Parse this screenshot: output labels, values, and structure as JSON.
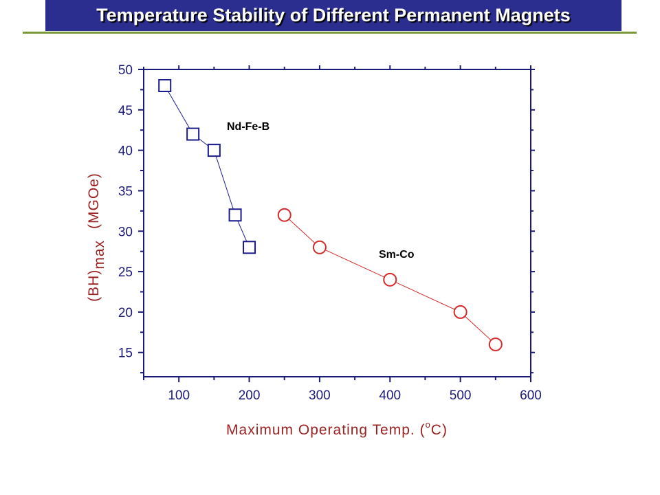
{
  "header": {
    "title": "Temperature Stability of Different Permanent Magnets",
    "title_bg": "#2b2e8f",
    "rule_color": "#7a9a3a"
  },
  "chart_data": {
    "type": "scatter",
    "title": "Temperature Stability of Different Permanent Magnets",
    "xlabel_main": "Maximum Operating Temp. (",
    "xlabel_sup": "o",
    "xlabel_end": "C)",
    "ylabel_base": "(BH)",
    "ylabel_sub": "max",
    "ylabel_unit": "(MGOe)",
    "xlim": [
      50,
      600
    ],
    "ylim": [
      12,
      50
    ],
    "xticks": [
      100,
      200,
      300,
      400,
      500,
      600
    ],
    "yticks": [
      15,
      20,
      25,
      30,
      35,
      40,
      45,
      50
    ],
    "grid": false,
    "axis_label_color": "#9a1f1f",
    "tick_color": "#1a1a7a",
    "series": [
      {
        "name": "Nd-Fe-B",
        "marker": "square",
        "color": "#1a1a8a",
        "x": [
          80,
          120,
          150,
          180,
          200
        ],
        "y": [
          48,
          42,
          40,
          32,
          28
        ]
      },
      {
        "name": "Sm-Co",
        "marker": "circle",
        "color": "#d42a2a",
        "x": [
          250,
          300,
          400,
          500,
          550
        ],
        "y": [
          32,
          28,
          24,
          20,
          16
        ]
      }
    ]
  }
}
